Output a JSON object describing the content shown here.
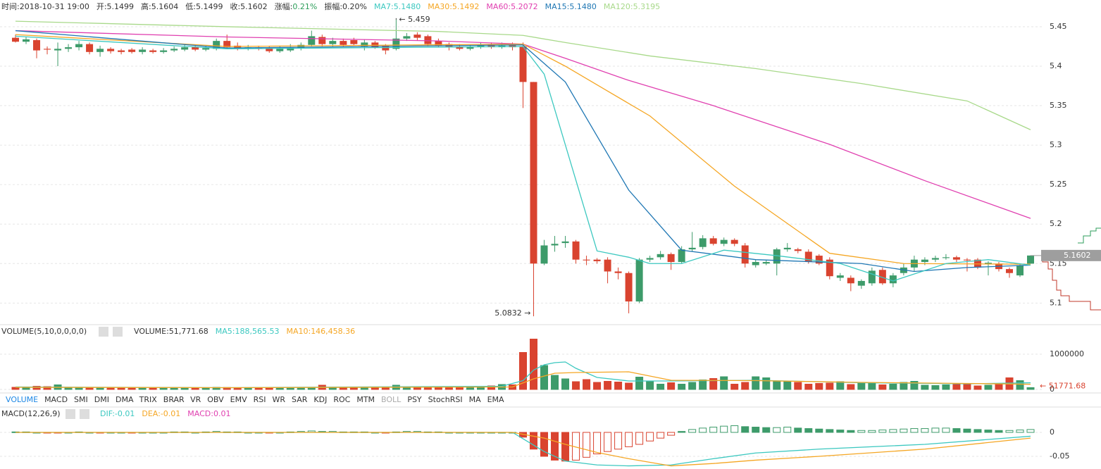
{
  "chart_data": [
    {
      "type": "candlestick",
      "header": [
        {
          "text": "时间:2018-10-31 19:00",
          "color": "#333333"
        },
        {
          "text": "开:5.1499",
          "color": "#333333"
        },
        {
          "text": "高:5.1604",
          "color": "#333333"
        },
        {
          "text": "低:5.1499",
          "color": "#333333"
        },
        {
          "text": "收:5.1602",
          "color": "#333333"
        },
        {
          "text": "涨幅:",
          "color": "#333333"
        },
        {
          "text": "0.21%",
          "color": "#2e9e5b"
        },
        {
          "text": "振幅:0.20%",
          "color": "#333333"
        },
        {
          "text": "MA7:5.1480",
          "color": "#3cc8c0"
        },
        {
          "text": "MA30:5.1492",
          "color": "#f5a623"
        },
        {
          "text": "MA60:5.2072",
          "color": "#e040b0"
        },
        {
          "text": "MA15:5.1480",
          "color": "#1f77b4"
        },
        {
          "text": "MA120:5.3195",
          "color": "#a8d98a"
        }
      ],
      "annotations": {
        "high": "← 5.459",
        "low": "5.0832 →",
        "last": "5.1602"
      },
      "xlim": [
        0,
        96
      ],
      "ylim": [
        5.078,
        5.466
      ],
      "yticks": [
        5.45,
        5.4,
        5.35,
        5.3,
        5.25,
        5.2,
        5.15,
        5.1
      ],
      "grid": true,
      "up_color": "#3d9b6a",
      "down_color": "#d9432f",
      "open": [
        5.436,
        5.431,
        5.433,
        5.422,
        5.42,
        5.422,
        5.424,
        5.428,
        5.418,
        5.422,
        5.42,
        5.421,
        5.418,
        5.42,
        5.418,
        5.42,
        5.421,
        5.424,
        5.421,
        5.422,
        5.432,
        5.426,
        5.422,
        5.424,
        5.423,
        5.419,
        5.42,
        5.423,
        5.427,
        5.437,
        5.428,
        5.432,
        5.433,
        5.425,
        5.43,
        5.426,
        5.422,
        5.435,
        5.44,
        5.438,
        5.432,
        5.428,
        5.425,
        5.422,
        5.424,
        5.428,
        5.424,
        5.427,
        5.425,
        5.38,
        5.15,
        5.173,
        5.176,
        5.178,
        5.155,
        5.155,
        5.155,
        5.14,
        5.138,
        5.102,
        5.155,
        5.158,
        5.162,
        5.152,
        5.168,
        5.171,
        5.182,
        5.175,
        5.18,
        5.173,
        5.148,
        5.15,
        5.15,
        5.168,
        5.168,
        5.165,
        5.16,
        5.155,
        5.132,
        5.132,
        5.122,
        5.125,
        5.142,
        5.125,
        5.138,
        5.145,
        5.152,
        5.155,
        5.157,
        5.158,
        5.155,
        5.155,
        5.149,
        5.15,
        5.143,
        5.135,
        5.1499
      ],
      "high": [
        5.44,
        5.437,
        5.435,
        5.425,
        5.43,
        5.428,
        5.432,
        5.43,
        5.426,
        5.424,
        5.422,
        5.423,
        5.424,
        5.422,
        5.423,
        5.425,
        5.427,
        5.426,
        5.426,
        5.435,
        5.44,
        5.43,
        5.427,
        5.426,
        5.425,
        5.426,
        5.428,
        5.43,
        5.445,
        5.44,
        5.436,
        5.435,
        5.436,
        5.434,
        5.432,
        5.428,
        5.459,
        5.442,
        5.443,
        5.44,
        5.435,
        5.43,
        5.428,
        5.427,
        5.43,
        5.43,
        5.43,
        5.43,
        5.43,
        5.38,
        5.18,
        5.185,
        5.185,
        5.18,
        5.16,
        5.157,
        5.158,
        5.145,
        5.14,
        5.157,
        5.16,
        5.166,
        5.164,
        5.172,
        5.19,
        5.186,
        5.185,
        5.183,
        5.182,
        5.176,
        5.155,
        5.155,
        5.17,
        5.176,
        5.17,
        5.168,
        5.162,
        5.158,
        5.138,
        5.135,
        5.13,
        5.145,
        5.145,
        5.138,
        5.15,
        5.16,
        5.158,
        5.16,
        5.162,
        5.16,
        5.157,
        5.157,
        5.153,
        5.152,
        5.145,
        5.15,
        5.1604
      ],
      "low": [
        5.43,
        5.428,
        5.41,
        5.415,
        5.4,
        5.418,
        5.42,
        5.415,
        5.412,
        5.416,
        5.415,
        5.416,
        5.415,
        5.416,
        5.416,
        5.418,
        5.419,
        5.419,
        5.419,
        5.42,
        5.422,
        5.42,
        5.42,
        5.42,
        5.417,
        5.417,
        5.418,
        5.42,
        5.425,
        5.425,
        5.425,
        5.425,
        5.426,
        5.42,
        5.422,
        5.415,
        5.42,
        5.432,
        5.433,
        5.425,
        5.424,
        5.42,
        5.42,
        5.42,
        5.422,
        5.422,
        5.422,
        5.42,
        5.347,
        5.0832,
        5.148,
        5.165,
        5.17,
        5.15,
        5.148,
        5.15,
        5.125,
        5.13,
        5.087,
        5.1,
        5.152,
        5.155,
        5.142,
        5.15,
        5.165,
        5.168,
        5.173,
        5.172,
        5.172,
        5.145,
        5.145,
        5.148,
        5.135,
        5.165,
        5.163,
        5.15,
        5.148,
        5.13,
        5.128,
        5.115,
        5.118,
        5.122,
        5.123,
        5.12,
        5.135,
        5.14,
        5.148,
        5.152,
        5.155,
        5.152,
        5.14,
        5.143,
        5.135,
        5.14,
        5.132,
        5.133,
        5.1499
      ],
      "close": [
        5.431,
        5.434,
        5.42,
        5.421,
        5.422,
        5.424,
        5.428,
        5.418,
        5.422,
        5.419,
        5.418,
        5.418,
        5.421,
        5.418,
        5.42,
        5.422,
        5.424,
        5.421,
        5.423,
        5.432,
        5.424,
        5.422,
        5.424,
        5.422,
        5.419,
        5.422,
        5.424,
        5.427,
        5.438,
        5.428,
        5.432,
        5.427,
        5.428,
        5.43,
        5.424,
        5.42,
        5.435,
        5.438,
        5.436,
        5.428,
        5.426,
        5.424,
        5.422,
        5.424,
        5.426,
        5.424,
        5.426,
        5.424,
        5.38,
        5.15,
        5.173,
        5.175,
        5.178,
        5.155,
        5.154,
        5.153,
        5.14,
        5.138,
        5.102,
        5.155,
        5.157,
        5.162,
        5.152,
        5.168,
        5.17,
        5.182,
        5.175,
        5.18,
        5.175,
        5.15,
        5.152,
        5.152,
        5.168,
        5.17,
        5.166,
        5.152,
        5.15,
        5.134,
        5.135,
        5.125,
        5.128,
        5.141,
        5.125,
        5.135,
        5.145,
        5.155,
        5.155,
        5.157,
        5.158,
        5.155,
        5.154,
        5.145,
        5.151,
        5.143,
        5.138,
        5.148,
        5.1602
      ],
      "lines": [
        {
          "color": "#a8d98a",
          "x": [
            0,
            20,
            40,
            48,
            52,
            60,
            70,
            80,
            90,
            96
          ],
          "values": [
            5.457,
            5.45,
            5.444,
            5.439,
            5.43,
            5.413,
            5.397,
            5.378,
            5.356,
            5.3195
          ]
        },
        {
          "color": "#e040b0",
          "x": [
            0,
            20,
            40,
            48,
            52,
            58,
            66,
            77,
            86,
            96
          ],
          "values": [
            5.445,
            5.437,
            5.432,
            5.428,
            5.41,
            5.382,
            5.35,
            5.301,
            5.255,
            5.2072
          ]
        },
        {
          "color": "#f5a623",
          "x": [
            0,
            20,
            48,
            52,
            60,
            68,
            77,
            84,
            96
          ],
          "values": [
            5.44,
            5.425,
            5.428,
            5.4,
            5.337,
            5.248,
            5.163,
            5.15,
            5.1492
          ]
        },
        {
          "color": "#1f77b4",
          "x": [
            0,
            20,
            48,
            52,
            58,
            63,
            70,
            80,
            85,
            90,
            96
          ],
          "values": [
            5.445,
            5.423,
            5.427,
            5.38,
            5.243,
            5.167,
            5.155,
            5.15,
            5.14,
            5.145,
            5.148
          ]
        },
        {
          "color": "#3cc8c0",
          "x": [
            0,
            20,
            48,
            50,
            55,
            58,
            60,
            63,
            67,
            72,
            78,
            83,
            88,
            92,
            96
          ],
          "values": [
            5.438,
            5.422,
            5.425,
            5.39,
            5.166,
            5.158,
            5.15,
            5.15,
            5.167,
            5.16,
            5.15,
            5.128,
            5.15,
            5.155,
            5.148
          ]
        }
      ]
    },
    {
      "type": "bar",
      "color_by": "candle",
      "title": "VOLUME(5,10,0,0,0,0)",
      "header": [
        {
          "text": "VOLUME:51,771.68",
          "color": "#333333"
        },
        {
          "text": "MA5:188,565.53",
          "color": "#3cc8c0"
        },
        {
          "text": "MA10:146,458.36",
          "color": "#f5a623"
        }
      ],
      "annotations": {
        "last": "← 51771.68"
      },
      "xlim": [
        0,
        96
      ],
      "ylim": [
        0,
        1460000
      ],
      "yticks": [
        0,
        1000000
      ],
      "grid": true,
      "up_color": "#3d9b6a",
      "down_color": "#d9432f",
      "values": [
        60000,
        70000,
        90000,
        80000,
        130000,
        60000,
        50000,
        40000,
        50000,
        40000,
        50000,
        45000,
        40000,
        50000,
        45000,
        40000,
        50000,
        45000,
        40000,
        60000,
        55000,
        50000,
        45000,
        50000,
        55000,
        60000,
        40000,
        45000,
        50000,
        120000,
        60000,
        50000,
        45000,
        60000,
        50000,
        55000,
        120000,
        70000,
        60000,
        80000,
        50000,
        55000,
        60000,
        70000,
        80000,
        100000,
        140000,
        130000,
        1050000,
        1430000,
        680000,
        400000,
        300000,
        220000,
        280000,
        200000,
        230000,
        210000,
        180000,
        350000,
        230000,
        150000,
        190000,
        150000,
        200000,
        270000,
        310000,
        360000,
        150000,
        200000,
        360000,
        330000,
        220000,
        230000,
        200000,
        150000,
        170000,
        180000,
        220000,
        140000,
        170000,
        180000,
        130000,
        150000,
        200000,
        230000,
        120000,
        110000,
        130000,
        140000,
        140000,
        100000,
        120000,
        140000,
        330000,
        250000,
        51771.68
      ],
      "lines": [
        {
          "color": "#3cc8c0",
          "x": [
            0,
            20,
            46,
            48,
            49,
            50,
            51,
            52,
            53,
            55,
            58,
            62,
            70,
            80,
            90,
            96
          ],
          "values": [
            70000,
            50000,
            90000,
            250000,
            550000,
            700000,
            760000,
            780000,
            600000,
            340000,
            240000,
            240000,
            260000,
            190000,
            160000,
            188565.53
          ]
        },
        {
          "color": "#f5a623",
          "x": [
            0,
            20,
            47,
            49,
            51,
            53,
            58,
            62,
            70,
            80,
            90,
            96
          ],
          "values": [
            60000,
            50000,
            70000,
            300000,
            460000,
            480000,
            500000,
            260000,
            250000,
            200000,
            170000,
            146458.36
          ]
        }
      ]
    },
    {
      "type": "bar",
      "color_by": "sign",
      "tabs": [
        {
          "text": "VOLUME",
          "color": "#1e88e5"
        },
        {
          "text": "MACD",
          "color": "#333333"
        },
        {
          "text": "SMI",
          "color": "#333333"
        },
        {
          "text": "DMI",
          "color": "#333333"
        },
        {
          "text": "DMA",
          "color": "#333333"
        },
        {
          "text": "TRIX",
          "color": "#333333"
        },
        {
          "text": "BRAR",
          "color": "#333333"
        },
        {
          "text": "VR",
          "color": "#333333"
        },
        {
          "text": "OBV",
          "color": "#333333"
        },
        {
          "text": "EMV",
          "color": "#333333"
        },
        {
          "text": "RSI",
          "color": "#333333"
        },
        {
          "text": "WR",
          "color": "#333333"
        },
        {
          "text": "SAR",
          "color": "#333333"
        },
        {
          "text": "KDJ",
          "color": "#333333"
        },
        {
          "text": "ROC",
          "color": "#333333"
        },
        {
          "text": "MTM",
          "color": "#333333"
        },
        {
          "text": "BOLL",
          "color": "#aaaaaa"
        },
        {
          "text": "PSY",
          "color": "#333333"
        },
        {
          "text": "StochRSI",
          "color": "#333333"
        },
        {
          "text": "MA",
          "color": "#333333"
        },
        {
          "text": "EMA",
          "color": "#333333"
        }
      ],
      "title": "MACD(12,26,9)",
      "header": [
        {
          "text": "DIF:-0.01",
          "color": "#3cc8c0"
        },
        {
          "text": "DEA:-0.01",
          "color": "#f5a623"
        },
        {
          "text": "MACD:0.01",
          "color": "#e040b0"
        }
      ],
      "xlim": [
        0,
        96
      ],
      "ylim": [
        -0.0765,
        0.025
      ],
      "yticks": [
        0,
        -0.05
      ],
      "grid": true,
      "up_color": "#3d9b6a",
      "down_color": "#d9432f",
      "values": [
        0.001,
        0.001,
        0,
        -0.001,
        -0.001,
        0,
        0.001,
        0,
        -0.001,
        0,
        0,
        -0.001,
        0,
        0,
        0,
        0.001,
        0.001,
        0,
        0.001,
        0.002,
        0.001,
        0.001,
        0,
        0,
        -0.001,
        0,
        0.001,
        0.002,
        0.003,
        0.002,
        0.002,
        0.001,
        0.001,
        0.001,
        0,
        -0.001,
        0.001,
        0.002,
        0.002,
        0.001,
        0.001,
        0,
        0,
        0,
        0,
        0,
        0,
        0,
        -0.01,
        -0.035,
        -0.05,
        -0.058,
        -0.06,
        -0.058,
        -0.052,
        -0.045,
        -0.04,
        -0.035,
        -0.03,
        -0.025,
        -0.018,
        -0.012,
        -0.006,
        0.002,
        0.006,
        0.009,
        0.011,
        0.013,
        0.014,
        0.012,
        0.011,
        0.01,
        0.01,
        0.011,
        0.009,
        0.008,
        0.007,
        0.006,
        0.005,
        0.004,
        0.004,
        0.004,
        0.005,
        0.006,
        0.007,
        0.008,
        0.008,
        0.009,
        0.009,
        0.008,
        0.007,
        0.006,
        0.005,
        0.004,
        0.004,
        0.005,
        0.006
      ],
      "lines": [
        {
          "color": "#3cc8c0",
          "x": [
            0,
            47,
            50,
            52,
            55,
            58,
            62,
            66,
            70,
            76,
            86,
            96
          ],
          "values": [
            0,
            0,
            -0.04,
            -0.06,
            -0.068,
            -0.07,
            -0.068,
            -0.055,
            -0.043,
            -0.035,
            -0.025,
            -0.008
          ]
        },
        {
          "color": "#f5a623",
          "x": [
            0,
            47,
            50,
            52,
            55,
            58,
            62,
            66,
            70,
            76,
            86,
            96
          ],
          "values": [
            0,
            0,
            -0.012,
            -0.025,
            -0.042,
            -0.055,
            -0.07,
            -0.065,
            -0.058,
            -0.05,
            -0.035,
            -0.012
          ]
        }
      ]
    }
  ]
}
